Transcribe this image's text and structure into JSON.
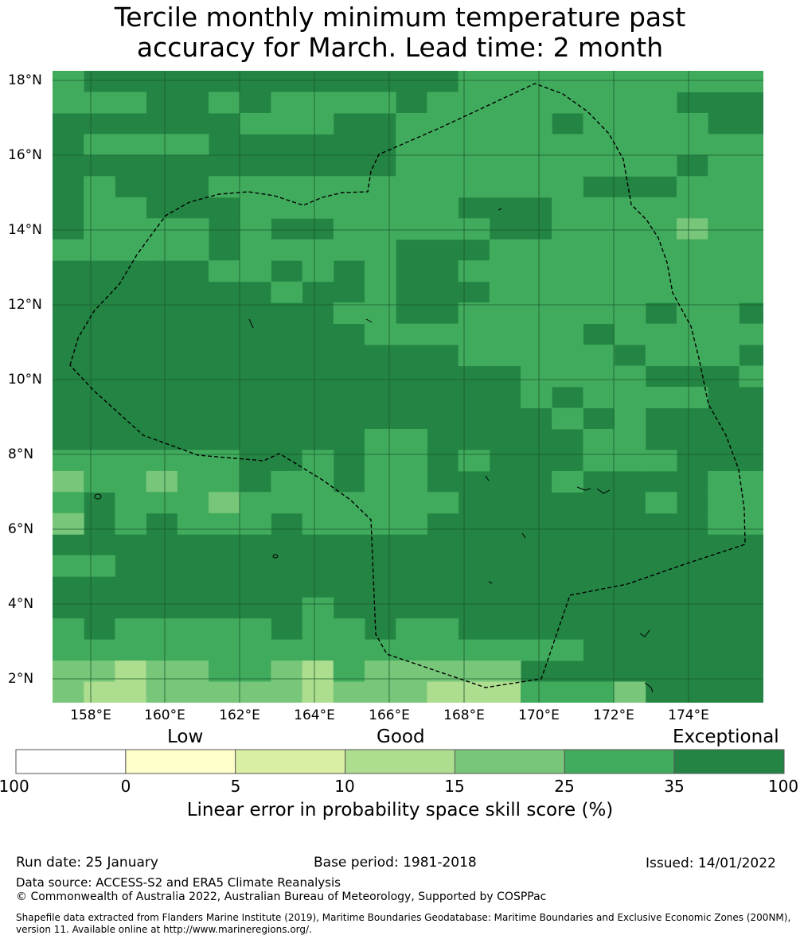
{
  "title": {
    "line1": "Tercile monthly minimum temperature past",
    "line2": "accuracy for March. Lead time: 2 month"
  },
  "map": {
    "lat_labels": [
      "18°N",
      "16°N",
      "14°N",
      "12°N",
      "10°N",
      "8°N",
      "6°N",
      "4°N",
      "2°N"
    ],
    "lon_labels": [
      "158°E",
      "160°E",
      "162°E",
      "164°E",
      "166°E",
      "168°E",
      "170°E",
      "172°E",
      "174°E"
    ],
    "lon_range": [
      157.0,
      176.0
    ],
    "lat_range": [
      1.4,
      18.3
    ],
    "grid_lines": true,
    "boundary_style": "dashed black line (EEZ)",
    "grid_cell_levels": [
      "BBBBBBBBBBBBBBBBBBBBBBB",
      "BBBBBBBBBBBBBBBBBBBBBBB",
      "BAABBBBBBBAAAAAAAAAAAAAA",
      "BBBBBBBBBBBAAAAAAAAAAAAA",
      "BBBBBBBBBBBAAAAAAAAAAAAA",
      "BBBBBBBBBBBAAAAAAAAAAAAA",
      "BBBBBBBBBBBBAAAAAAAAAAAA",
      "BBBBBBBBBBBBAAAAAAAAAAAA"
    ]
  },
  "colorbar": {
    "categories": [
      "Low",
      "Good",
      "Exceptional"
    ],
    "ticks": [
      "-100",
      "0",
      "5",
      "10",
      "15",
      "25",
      "35",
      "100"
    ],
    "colors": [
      "#ffffff",
      "#ffffcc",
      "#d9f0a3",
      "#addd8e",
      "#78c679",
      "#41ab5d",
      "#238443"
    ],
    "label": "Linear error in probability space skill score (%)"
  },
  "footer": {
    "run_date": "Run date: 25 January",
    "base_period": "Base period: 1981-2018",
    "issued": "Issued: 14/01/2022",
    "data_source": "Data source: ACCESS-S2 and ERA5 Climate Reanalysis",
    "copyright": "© Commonwealth of Australia 2022, Australian Bureau of Meteorology, Supported by COSPPac",
    "shapefile": "Shapefile data extracted from Flanders Marine Institute (2019), Maritime Boundaries Geodatabase: Maritime Boundaries and Exclusive Economic Zones (200NM), version 11. Available online at http://www.marineregions.org/."
  }
}
